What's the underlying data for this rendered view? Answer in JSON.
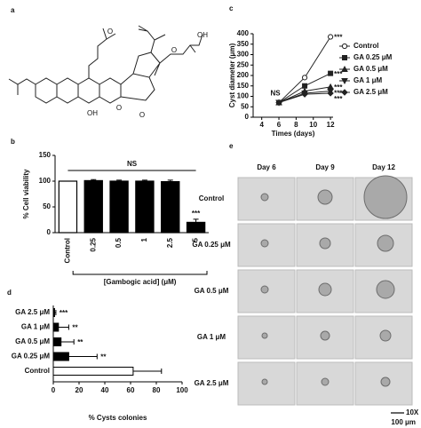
{
  "panel_labels": [
    "a",
    "b",
    "c",
    "d",
    "e"
  ],
  "structure": {
    "atom_labels": [
      "O",
      "O",
      "O",
      "OH",
      "O",
      "OH"
    ]
  },
  "chart_data": [
    {
      "type": "bar",
      "ylabel": "% Cell viability",
      "xlabel": "[Gambogic acid] (μM)",
      "categories": [
        "Control",
        "0.25",
        "0.5",
        "1",
        "2.5",
        "5"
      ],
      "values": [
        100,
        101,
        100,
        100,
        99,
        20
      ],
      "errors": [
        0,
        2,
        2,
        2,
        3,
        6
      ],
      "colors": [
        "#ffffff",
        "#000000",
        "#000000",
        "#000000",
        "#000000",
        "#000000"
      ],
      "ylim": [
        0,
        150
      ],
      "yticks": [
        0,
        50,
        100,
        150
      ],
      "bracket_label": "NS",
      "significance": [
        null,
        null,
        null,
        null,
        null,
        "***"
      ]
    },
    {
      "type": "line",
      "ylabel": "Cyst diameter (μm)",
      "xlabel": "Times (days)",
      "x": [
        6,
        9,
        12
      ],
      "xlim": [
        3,
        12.3
      ],
      "xticks": [
        4,
        6,
        8,
        10,
        12
      ],
      "ylim": [
        0,
        400
      ],
      "yticks": [
        0,
        50,
        100,
        150,
        200,
        250,
        300,
        350,
        400
      ],
      "start_label": "NS",
      "series": [
        {
          "name": "Control",
          "color": "#222222",
          "marker": "open-circle",
          "values": [
            70,
            190,
            385
          ],
          "significance": "***"
        },
        {
          "name": "GA 0.25 μM",
          "color": "#222222",
          "marker": "square",
          "values": [
            70,
            150,
            210
          ],
          "significance": "***"
        },
        {
          "name": "GA 0.5 μM",
          "color": "#222222",
          "marker": "triangle",
          "values": [
            70,
            125,
            145
          ],
          "significance": "***"
        },
        {
          "name": "GA 1 μM",
          "color": "#222222",
          "marker": "triangle-down",
          "values": [
            70,
            115,
            125
          ],
          "significance": "***"
        },
        {
          "name": "GA 2.5 μM",
          "color": "#222222",
          "marker": "diamond",
          "values": [
            70,
            110,
            115
          ],
          "significance": "***"
        }
      ]
    },
    {
      "type": "hbar",
      "xlabel": "% Cysts colonies",
      "categories": [
        "GA 2.5 μM",
        "GA 1 μM",
        "GA 0.5 μM",
        "GA 0.25 μM",
        "Control"
      ],
      "values": [
        1,
        4,
        6,
        12,
        62
      ],
      "errors": [
        1,
        8,
        10,
        22,
        22
      ],
      "colors": [
        "#000000",
        "#000000",
        "#000000",
        "#000000",
        "#ffffff"
      ],
      "xlim": [
        0,
        100
      ],
      "xticks": [
        0,
        20,
        40,
        60,
        80,
        100
      ],
      "significance": [
        "***",
        "**",
        "**",
        "**",
        null
      ]
    }
  ],
  "images": {
    "columns": [
      "Day 6",
      "Day 9",
      "Day 12"
    ],
    "rows": [
      "Control",
      "GA 0.25 μM",
      "GA 0.5 μM",
      "GA 1 μM",
      "GA 2.5 μM"
    ],
    "scale": [
      "10X",
      "100 μm"
    ]
  }
}
